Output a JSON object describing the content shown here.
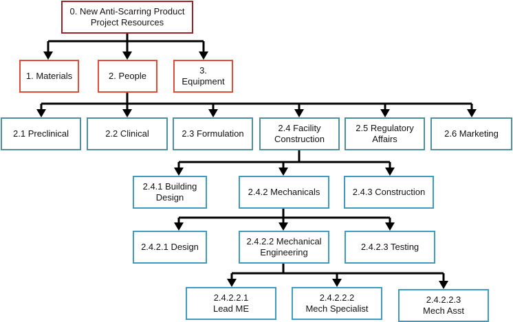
{
  "colors": {
    "root": "#9b2226",
    "level1": "#e24a33",
    "level2": "#4d8f9a",
    "level3": "#3d9bc1",
    "connector": "#000000"
  },
  "root": {
    "label": "0. New Anti-Scarring Product\nProject Resources"
  },
  "level1": [
    {
      "label": "1. Materials"
    },
    {
      "label": "2. People"
    },
    {
      "label": "3.\nEquipment"
    }
  ],
  "people": [
    {
      "label": "2.1 Preclinical"
    },
    {
      "label": "2.2 Clinical"
    },
    {
      "label": "2.3 Formulation"
    },
    {
      "label": "2.4 Facility\nConstruction"
    },
    {
      "label": "2.5 Regulatory\nAffairs"
    },
    {
      "label": "2.6 Marketing"
    }
  ],
  "facility": [
    {
      "label": "2.4.1 Building\nDesign"
    },
    {
      "label": "2.4.2 Mechanicals"
    },
    {
      "label": "2.4.3 Construction"
    }
  ],
  "mechanicals": [
    {
      "label": "2.4.2.1 Design"
    },
    {
      "label": "2.4.2.2 Mechanical\nEngineering"
    },
    {
      "label": "2.4.2.3 Testing"
    }
  ],
  "mech_engineering": [
    {
      "label": "2.4.2.2.1\nLead ME"
    },
    {
      "label": "2.4.2.2.2\nMech Specialist"
    },
    {
      "label": "2.4.2.2.3\nMech Asst"
    }
  ]
}
